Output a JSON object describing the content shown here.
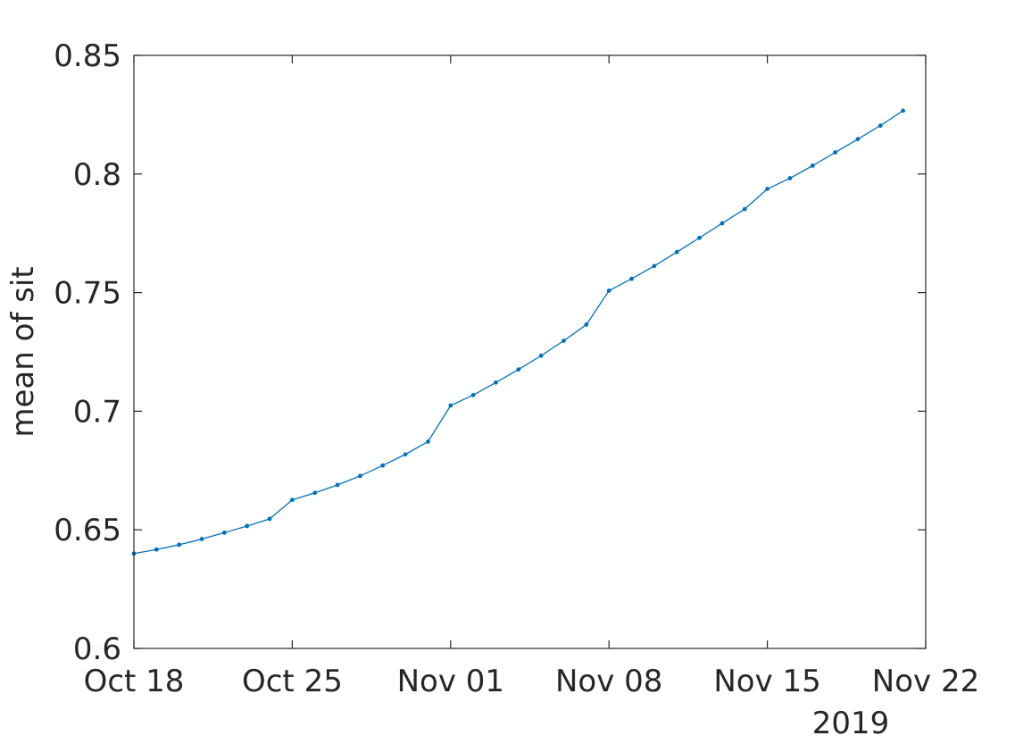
{
  "chart_data": {
    "type": "line",
    "ylabel": "mean of sit",
    "xlabel": "",
    "year_label": "2019",
    "x_range": [
      "2019-10-18",
      "2019-11-22"
    ],
    "ylim": [
      0.6,
      0.85
    ],
    "x_ticks": [
      {
        "date": "2019-10-18",
        "label": "Oct 18"
      },
      {
        "date": "2019-10-25",
        "label": "Oct 25"
      },
      {
        "date": "2019-11-01",
        "label": "Nov 01"
      },
      {
        "date": "2019-11-08",
        "label": "Nov 08"
      },
      {
        "date": "2019-11-15",
        "label": "Nov 15"
      },
      {
        "date": "2019-11-22",
        "label": "Nov 22"
      }
    ],
    "y_ticks": [
      {
        "value": 0.6,
        "label": "0.6"
      },
      {
        "value": 0.65,
        "label": "0.65"
      },
      {
        "value": 0.7,
        "label": "0.7"
      },
      {
        "value": 0.75,
        "label": "0.75"
      },
      {
        "value": 0.8,
        "label": "0.8"
      },
      {
        "value": 0.85,
        "label": "0.85"
      }
    ],
    "grid": false,
    "box": true,
    "line_color": "#0072BD",
    "series": [
      {
        "x": [
          "2019-10-18",
          "2019-10-19",
          "2019-10-20",
          "2019-10-21",
          "2019-10-22",
          "2019-10-23",
          "2019-10-24",
          "2019-10-25",
          "2019-10-26",
          "2019-10-27",
          "2019-10-28",
          "2019-10-29",
          "2019-10-30",
          "2019-10-31",
          "2019-11-01",
          "2019-11-02",
          "2019-11-03",
          "2019-11-04",
          "2019-11-05",
          "2019-11-06",
          "2019-11-07",
          "2019-11-08",
          "2019-11-09",
          "2019-11-10",
          "2019-11-11",
          "2019-11-12",
          "2019-11-13",
          "2019-11-14",
          "2019-11-15",
          "2019-11-16",
          "2019-11-17",
          "2019-11-18",
          "2019-11-19",
          "2019-11-20",
          "2019-11-21"
        ],
        "y": [
          0.64,
          0.6417,
          0.6437,
          0.6461,
          0.6488,
          0.6516,
          0.6546,
          0.6626,
          0.6656,
          0.6689,
          0.6727,
          0.6771,
          0.6818,
          0.6872,
          0.7024,
          0.7068,
          0.7121,
          0.7176,
          0.7234,
          0.7297,
          0.7365,
          0.7508,
          0.7558,
          0.7612,
          0.7671,
          0.7731,
          0.7792,
          0.7852,
          0.7937,
          0.7982,
          0.8035,
          0.8091,
          0.8147,
          0.8204,
          0.8267
        ]
      }
    ]
  }
}
